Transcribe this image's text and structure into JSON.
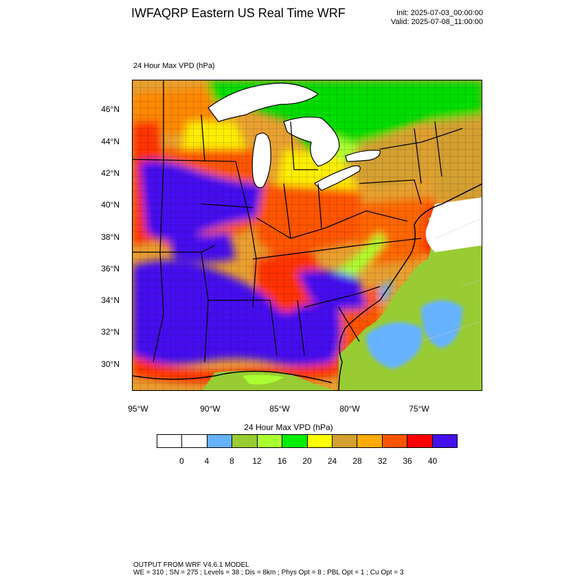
{
  "header": {
    "title": "IWFAQRP Eastern US Real Time WRF",
    "init": "Init: 2025-07-03_00:00:00",
    "valid": "Valid: 2025-07-08_11:00:00"
  },
  "panel": {
    "title": "24 Hour Max VPD   (hPa)"
  },
  "map": {
    "lat_labels": [
      "46°N",
      "44°N",
      "42°N",
      "40°N",
      "38°N",
      "36°N",
      "34°N",
      "32°N",
      "30°N"
    ],
    "lon_labels": [
      "95°W",
      "90°W",
      "85°W",
      "80°W",
      "75°W"
    ]
  },
  "colorbar": {
    "title": "24 Hour Max VPD  (hPa)",
    "labels": [
      "0",
      "4",
      "8",
      "12",
      "16",
      "20",
      "24",
      "28",
      "32",
      "36",
      "40"
    ],
    "colors": [
      "#ffffff",
      "#ffffff",
      "#66b2ff",
      "#99cc33",
      "#aaff33",
      "#00ee00",
      "#ffff00",
      "#d4a030",
      "#ffaa00",
      "#ff5500",
      "#ff0000",
      "#4411ee"
    ]
  },
  "footer": {
    "line1": "OUTPUT FROM WRF V4.6.1 MODEL",
    "line2": "WE = 310 ; SN = 275 ; Levels = 38 ; Dis = 8km ; Phys Opt = 8 ; PBL Opt = 1 ; Cu Opt = 3"
  }
}
